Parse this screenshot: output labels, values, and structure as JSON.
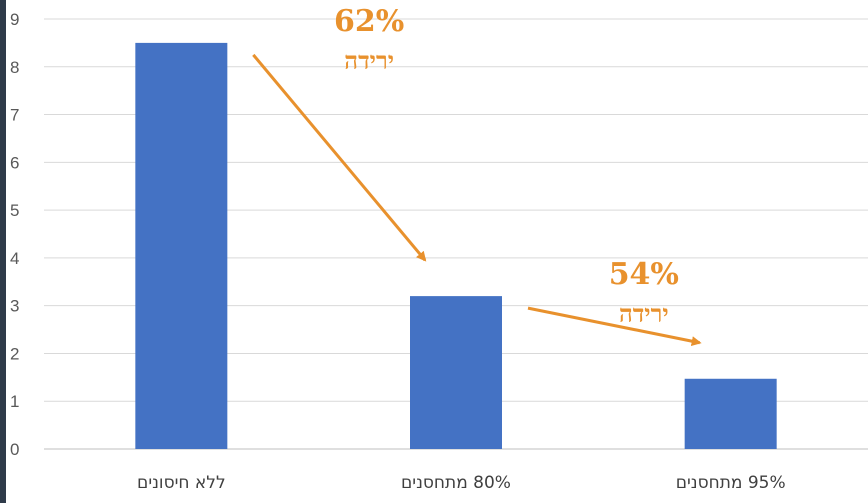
{
  "chart_data": {
    "type": "bar",
    "categories": [
      "ללא חיסונים",
      "80% מתחסנים",
      "95% מתחסנים"
    ],
    "values": [
      8.5,
      3.2,
      1.47
    ],
    "ylim": [
      0,
      9
    ],
    "yticks": [
      0,
      1,
      2,
      3,
      4,
      5,
      6,
      7,
      8,
      9
    ],
    "grid": true,
    "bar_color": "#4472C4",
    "annotations": [
      {
        "from": 0,
        "to": 1,
        "percent": "62%",
        "text": "ירידה"
      },
      {
        "from": 1,
        "to": 2,
        "percent": "54%",
        "text": "ירידה"
      }
    ],
    "annotation_color": "#E8912D",
    "grid_color": "#d9d9d9",
    "axis_color": "#bfbfbf"
  }
}
